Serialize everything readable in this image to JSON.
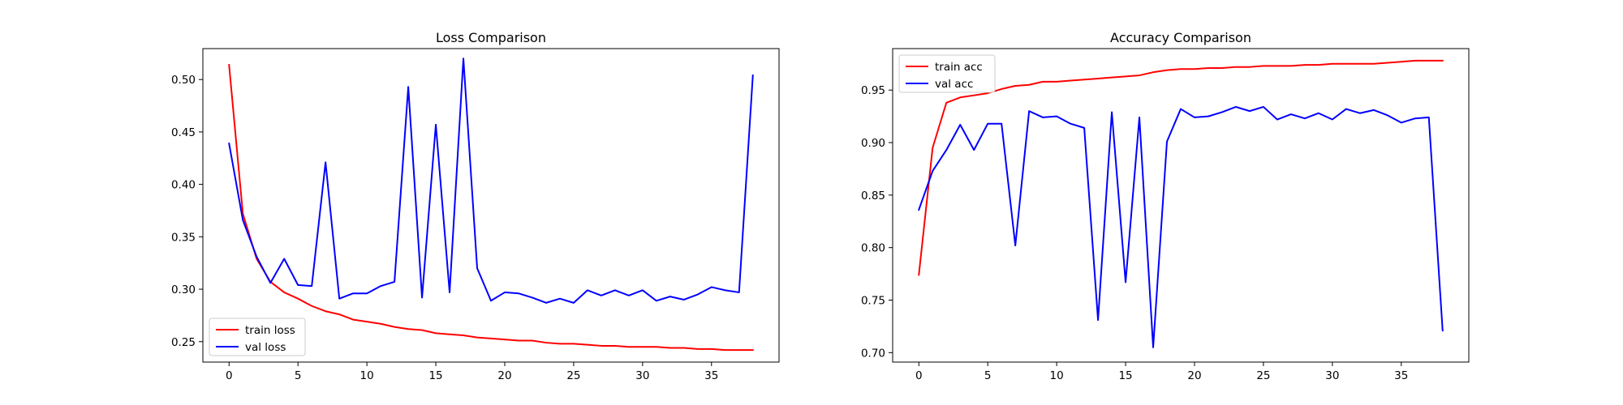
{
  "chart_data": [
    {
      "type": "line",
      "title": "Loss Comparison",
      "xlabel": "",
      "ylabel": "",
      "xlim": [
        -1.9,
        39.9
      ],
      "ylim": [
        0.2305,
        0.5295
      ],
      "xticks": [
        0,
        5,
        10,
        15,
        20,
        25,
        30,
        35
      ],
      "yticks": [
        0.25,
        0.3,
        0.35,
        0.4,
        0.45,
        0.5
      ],
      "ytick_decimals": 2,
      "grid": false,
      "legend_position": "lower-left",
      "x": [
        0,
        1,
        2,
        3,
        4,
        5,
        6,
        7,
        8,
        9,
        10,
        11,
        12,
        13,
        14,
        15,
        16,
        17,
        18,
        19,
        20,
        21,
        22,
        23,
        24,
        25,
        26,
        27,
        28,
        29,
        30,
        31,
        32,
        33,
        34,
        35,
        36,
        37,
        38
      ],
      "series": [
        {
          "name": "train loss",
          "color": "#ff0000",
          "values": [
            0.514,
            0.372,
            0.329,
            0.307,
            0.297,
            0.291,
            0.284,
            0.279,
            0.276,
            0.271,
            0.269,
            0.267,
            0.264,
            0.262,
            0.261,
            0.258,
            0.257,
            0.256,
            0.254,
            0.253,
            0.252,
            0.251,
            0.251,
            0.249,
            0.248,
            0.248,
            0.247,
            0.246,
            0.246,
            0.245,
            0.245,
            0.245,
            0.244,
            0.244,
            0.243,
            0.243,
            0.242,
            0.242,
            0.242
          ]
        },
        {
          "name": "val loss",
          "color": "#0000ff",
          "values": [
            0.439,
            0.366,
            0.331,
            0.306,
            0.329,
            0.304,
            0.303,
            0.421,
            0.291,
            0.296,
            0.296,
            0.303,
            0.307,
            0.493,
            0.292,
            0.457,
            0.297,
            0.52,
            0.32,
            0.289,
            0.297,
            0.296,
            0.292,
            0.287,
            0.291,
            0.287,
            0.299,
            0.294,
            0.299,
            0.294,
            0.299,
            0.289,
            0.293,
            0.29,
            0.295,
            0.302,
            0.299,
            0.297,
            0.504
          ]
        }
      ]
    },
    {
      "type": "line",
      "title": "Accuracy Comparison",
      "xlabel": "",
      "ylabel": "",
      "xlim": [
        -1.9,
        39.9
      ],
      "ylim": [
        0.691,
        0.9895
      ],
      "xticks": [
        0,
        5,
        10,
        15,
        20,
        25,
        30,
        35
      ],
      "yticks": [
        0.7,
        0.75,
        0.8,
        0.85,
        0.9,
        0.95
      ],
      "ytick_decimals": 2,
      "grid": false,
      "legend_position": "upper-left",
      "x": [
        0,
        1,
        2,
        3,
        4,
        5,
        6,
        7,
        8,
        9,
        10,
        11,
        12,
        13,
        14,
        15,
        16,
        17,
        18,
        19,
        20,
        21,
        22,
        23,
        24,
        25,
        26,
        27,
        28,
        29,
        30,
        31,
        32,
        33,
        34,
        35,
        36,
        37,
        38
      ],
      "series": [
        {
          "name": "train acc",
          "color": "#ff0000",
          "values": [
            0.774,
            0.895,
            0.938,
            0.943,
            0.945,
            0.947,
            0.951,
            0.954,
            0.955,
            0.958,
            0.958,
            0.959,
            0.96,
            0.961,
            0.962,
            0.963,
            0.964,
            0.967,
            0.969,
            0.97,
            0.97,
            0.971,
            0.971,
            0.972,
            0.972,
            0.973,
            0.973,
            0.973,
            0.974,
            0.974,
            0.975,
            0.975,
            0.975,
            0.975,
            0.976,
            0.977,
            0.978,
            0.978,
            0.978
          ]
        },
        {
          "name": "val acc",
          "color": "#0000ff",
          "values": [
            0.836,
            0.873,
            0.893,
            0.917,
            0.893,
            0.918,
            0.918,
            0.802,
            0.93,
            0.924,
            0.925,
            0.918,
            0.914,
            0.731,
            0.929,
            0.767,
            0.924,
            0.705,
            0.901,
            0.932,
            0.924,
            0.925,
            0.929,
            0.934,
            0.93,
            0.934,
            0.922,
            0.927,
            0.923,
            0.928,
            0.922,
            0.932,
            0.928,
            0.931,
            0.926,
            0.919,
            0.923,
            0.924,
            0.721
          ]
        }
      ]
    }
  ]
}
